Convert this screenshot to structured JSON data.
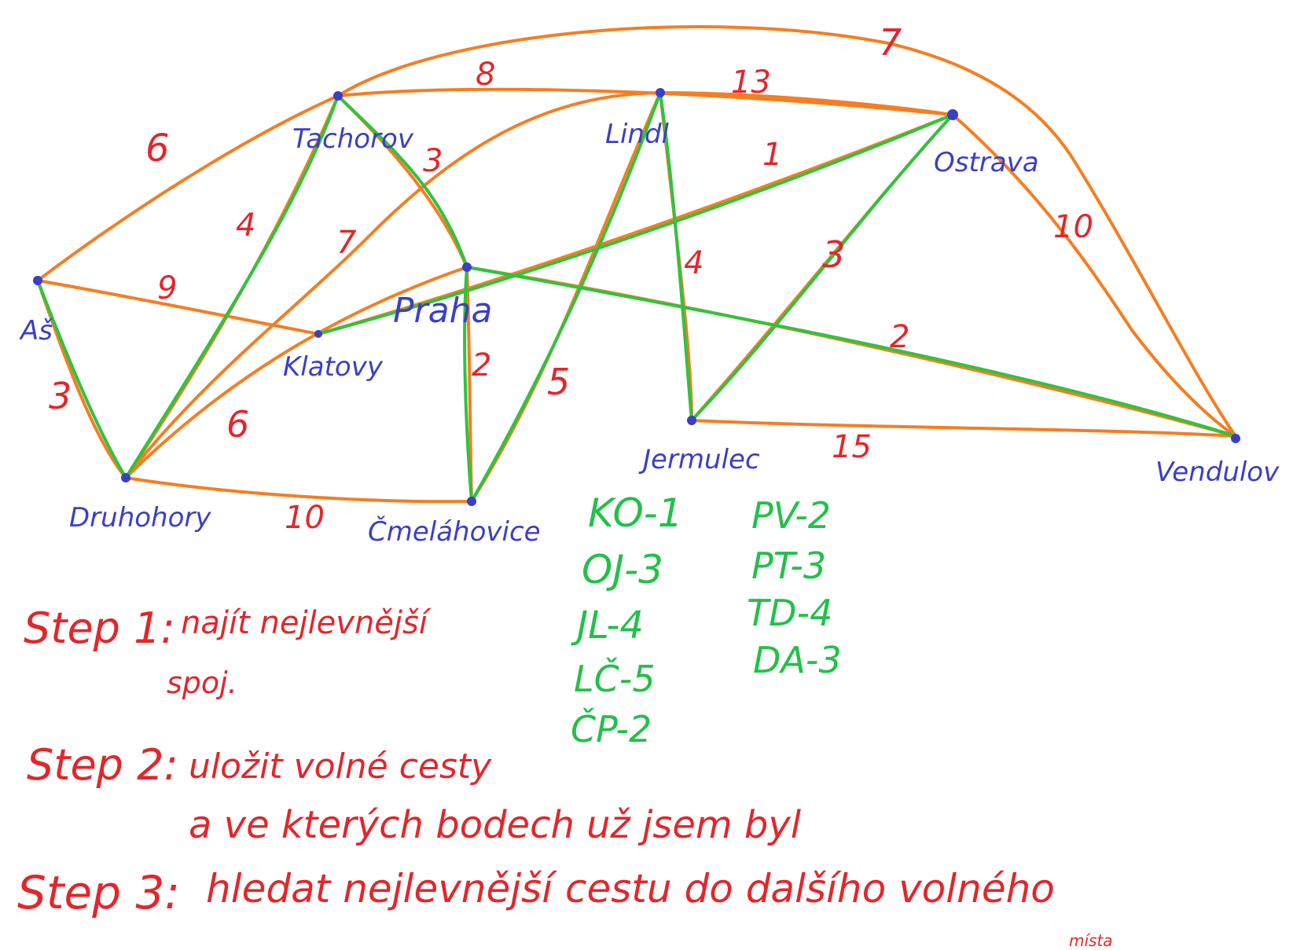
{
  "nodes": [
    {
      "id": "A",
      "label": "Aš"
    },
    {
      "id": "T",
      "label": "Tachorov"
    },
    {
      "id": "L",
      "label": "Lindl"
    },
    {
      "id": "O",
      "label": "Ostrava"
    },
    {
      "id": "P",
      "label": "Praha"
    },
    {
      "id": "K",
      "label": "Klatovy"
    },
    {
      "id": "D",
      "label": "Druhohory"
    },
    {
      "id": "C",
      "label": "Čmeláhovice"
    },
    {
      "id": "J",
      "label": "Jermulec"
    },
    {
      "id": "V",
      "label": "Vendulov"
    }
  ],
  "edges": [
    {
      "from": "A",
      "to": "T",
      "weight": "6"
    },
    {
      "from": "T",
      "to": "V",
      "weight": "7"
    },
    {
      "from": "T",
      "to": "O",
      "weight": "8"
    },
    {
      "from": "L",
      "to": "O",
      "weight": "13"
    },
    {
      "from": "T",
      "to": "P",
      "weight": "3"
    },
    {
      "from": "T",
      "to": "D",
      "weight": "4"
    },
    {
      "from": "L",
      "to": "D",
      "weight": "7"
    },
    {
      "from": "K",
      "to": "O",
      "weight": "1"
    },
    {
      "from": "A",
      "to": "K",
      "weight": "9"
    },
    {
      "from": "A",
      "to": "D",
      "weight": "3"
    },
    {
      "from": "P",
      "to": "D",
      "weight": "6"
    },
    {
      "from": "P",
      "to": "C",
      "weight": "2"
    },
    {
      "from": "L",
      "to": "C",
      "weight": "5"
    },
    {
      "from": "L",
      "to": "J",
      "weight": "4"
    },
    {
      "from": "O",
      "to": "J",
      "weight": "3"
    },
    {
      "from": "O",
      "to": "V",
      "weight": "10"
    },
    {
      "from": "P",
      "to": "V",
      "weight": "2"
    },
    {
      "from": "J",
      "to": "V",
      "weight": "15"
    },
    {
      "from": "D",
      "to": "C",
      "weight": "10"
    }
  ],
  "mst_list": {
    "col1": [
      "KO-1",
      "OJ-3",
      "JL-4",
      "LČ-5",
      "ČP-2"
    ],
    "col2": [
      "PV-2",
      "PT-3",
      "TD-4",
      "DA-3"
    ]
  },
  "steps": {
    "step1_label": "Step 1:",
    "step1_text": "najít nejlevnější",
    "step1_text2": "spoj.",
    "step2_label": "Step 2:",
    "step2_text": "uložit volné cesty",
    "step2_text2": "a ve kterých bodech už jsem byl",
    "step3_label": "Step 3:",
    "step3_text": "hledat nejlevnější cestu do dalšího volného",
    "step3_text2": "místa"
  },
  "colors": {
    "edge": "#f47e22",
    "mst_edge": "#2fc33f",
    "node": "#3b3fc4",
    "weight": "#e3262b"
  }
}
